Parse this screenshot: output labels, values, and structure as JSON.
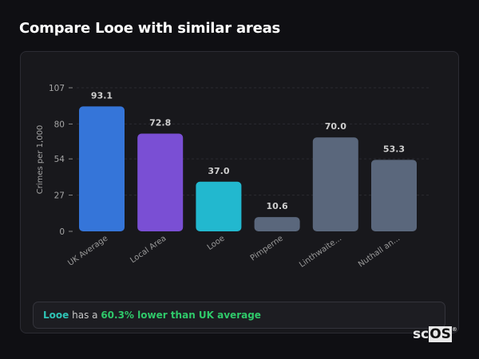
{
  "header": {
    "title": "Compare Looe with similar areas"
  },
  "chart_data": {
    "type": "bar",
    "ylabel": "Crimes per 1,000",
    "xlabel": "",
    "ylim": [
      0,
      107
    ],
    "yticks": [
      0,
      27,
      54,
      80,
      107
    ],
    "grid": true,
    "categories": [
      "UK Average",
      "Local Area",
      "Looe",
      "Pimperne",
      "Linthwaite...",
      "Nuthall an..."
    ],
    "values": [
      93.1,
      72.8,
      37.0,
      10.6,
      70.0,
      53.3
    ],
    "value_labels": [
      "93.1",
      "72.8",
      "37.0",
      "10.6",
      "70.0",
      "53.3"
    ],
    "colors": [
      "#3575d9",
      "#7a4fd4",
      "#22b8cf",
      "#5a677c",
      "#5a677c",
      "#5a677c"
    ]
  },
  "summary": {
    "place": "Looe",
    "middle": "has a",
    "comparison": "60.3% lower than UK average"
  },
  "logo": {
    "text_a": "sc",
    "text_b": "OS",
    "mark": "®"
  }
}
